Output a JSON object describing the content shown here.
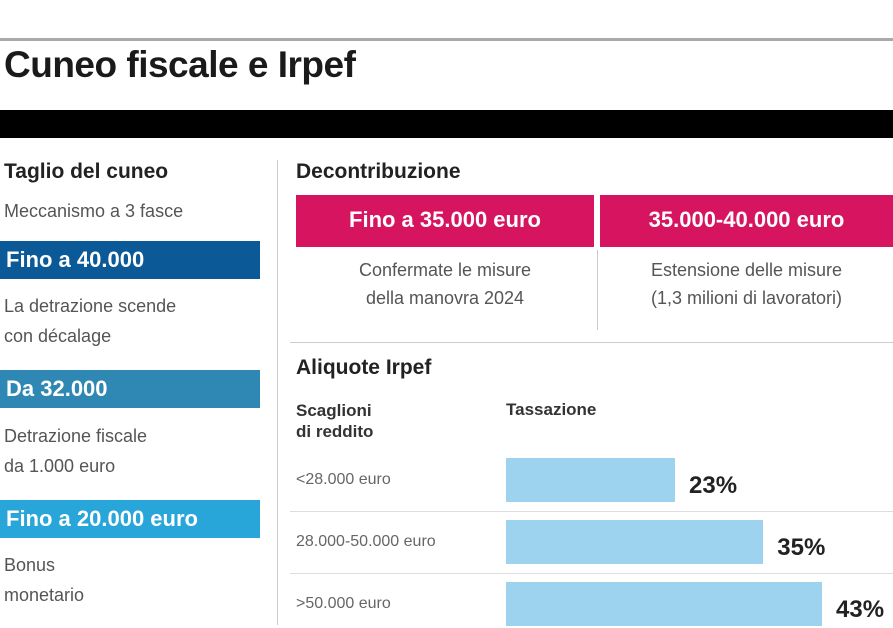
{
  "title": "Cuneo fiscale e Irpef",
  "left": {
    "heading": "Taglio del cuneo",
    "subheading": "Meccanismo a 3 fasce",
    "bands": [
      {
        "label": "Fino a 40.000",
        "desc1": "La detrazione scende",
        "desc2": "con décalage",
        "color": "#0b5a97"
      },
      {
        "label": "Da 32.000",
        "desc1": "Detrazione fiscale",
        "desc2": "da 1.000 euro",
        "color": "#2f88b3"
      },
      {
        "label": "Fino a 20.000 euro",
        "desc1": "Bonus",
        "desc2": "monetario",
        "color": "#28a6da"
      }
    ]
  },
  "decontribuzione": {
    "heading": "Decontribuzione",
    "color": "#d6145f",
    "boxes": [
      {
        "label": "Fino a 35.000 euro",
        "desc1": "Confermate le misure",
        "desc2": "della manovra 2024"
      },
      {
        "label": "35.000-40.000 euro",
        "desc1": "Estensione delle misure",
        "desc2": "(1,3 milioni di lavoratori)"
      }
    ]
  },
  "chart_data": {
    "type": "bar",
    "title": "Aliquote Irpef",
    "xlabel": "Tassazione",
    "ylabel": "Scaglioni di reddito",
    "ylabel_line1": "Scaglioni",
    "ylabel_line2": "di reddito",
    "categories": [
      "<28.000 euro",
      "28.000-50.000 euro",
      ">50.000 euro"
    ],
    "values": [
      23,
      35,
      43
    ],
    "value_labels": [
      "23%",
      "35%",
      "43%"
    ],
    "bar_color": "#9dd3ee",
    "orientation": "horizontal"
  }
}
